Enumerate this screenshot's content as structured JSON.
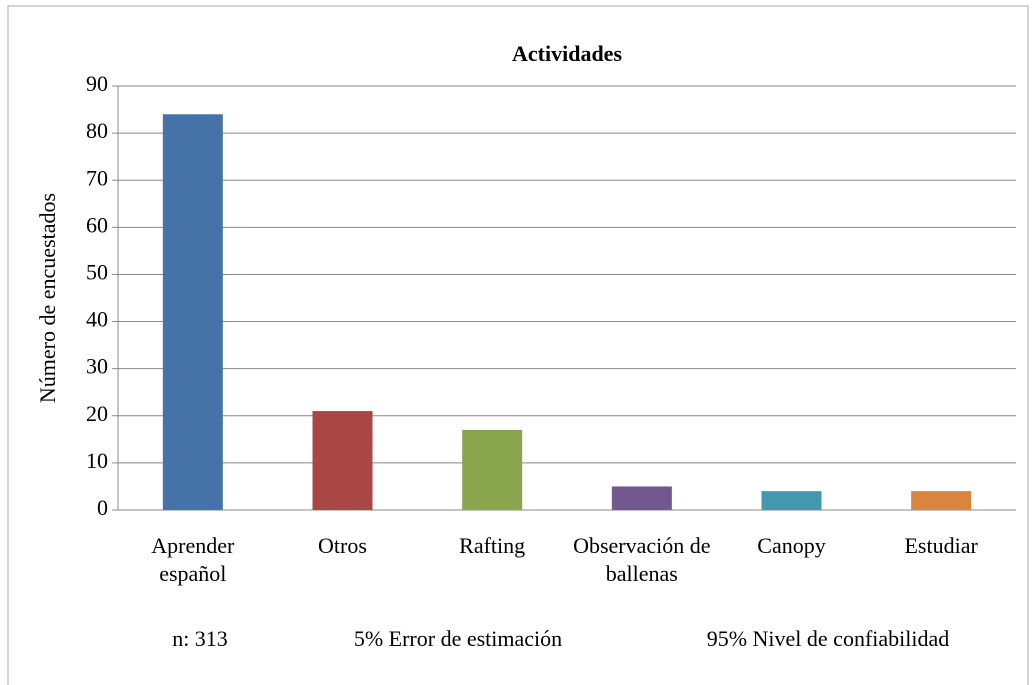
{
  "chart_data": {
    "type": "bar",
    "title": "Actividades",
    "y_label": "Número de encuestados",
    "categories": [
      "Aprender español",
      "Otros",
      "Rafting",
      "Observación de ballenas",
      "Canopy",
      "Estudiar"
    ],
    "values": [
      84,
      21,
      17,
      5,
      4,
      4
    ],
    "colors": [
      "#4573a7",
      "#aa4643",
      "#89a54e",
      "#71588f",
      "#4198af",
      "#db843d"
    ],
    "ylim": [
      0,
      90
    ],
    "yticks": [
      0,
      10,
      20,
      30,
      40,
      50,
      60,
      70,
      80,
      90
    ],
    "grid": true,
    "notes": [
      "n: 313",
      "5% Error de estimación",
      "95% Nivel de confiabilidad"
    ]
  }
}
